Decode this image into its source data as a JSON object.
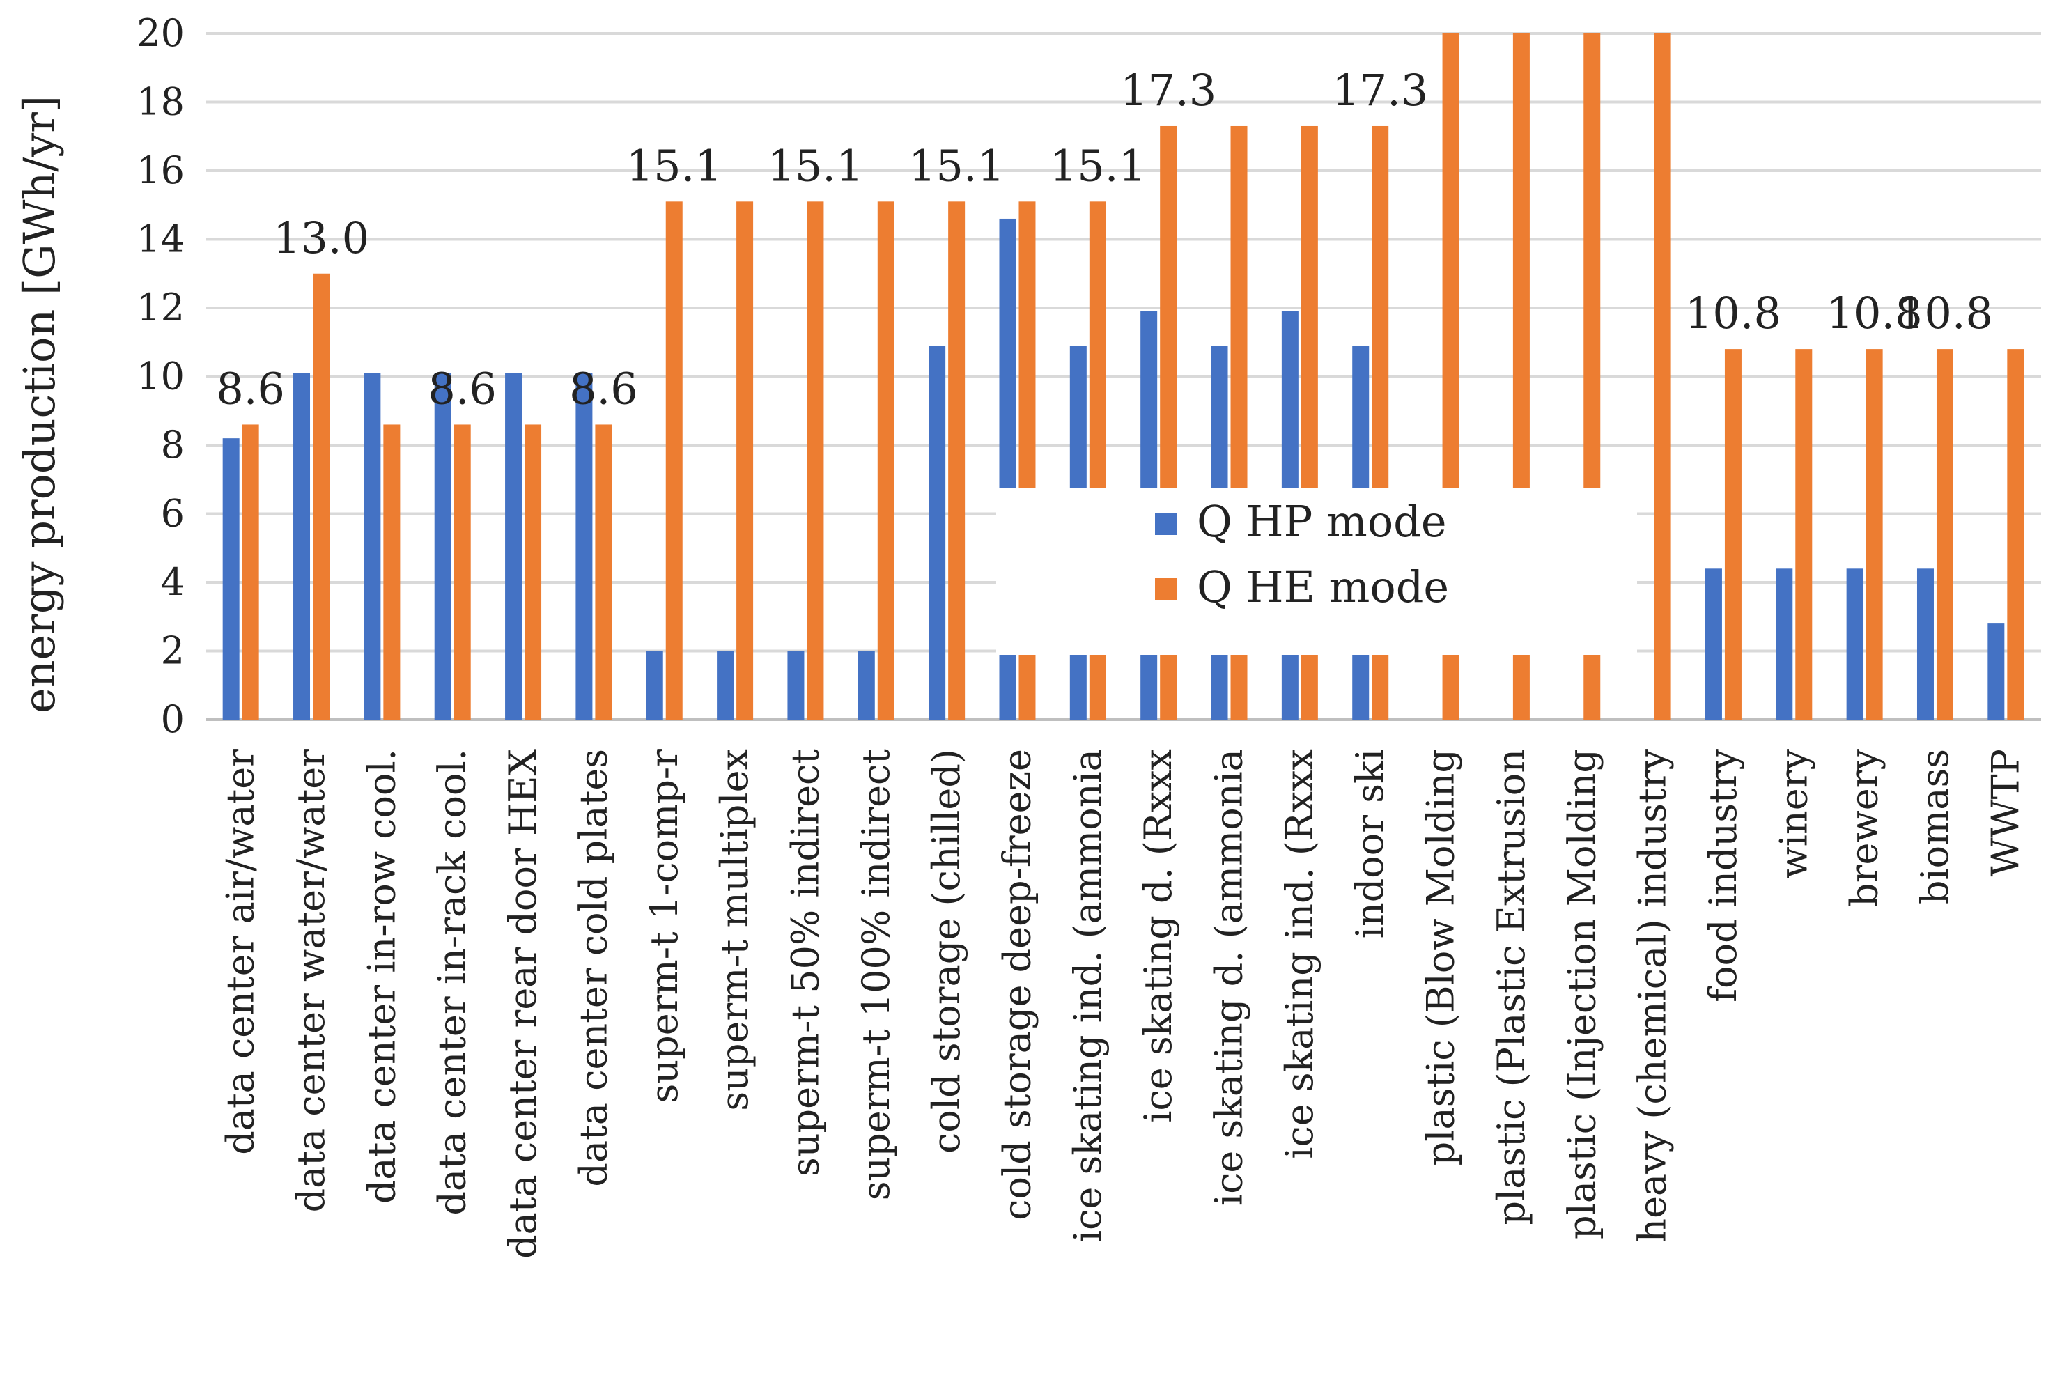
{
  "chart_data": {
    "type": "bar",
    "ylabel": "energy production [GWh/yr]",
    "xlabel": "",
    "ylim": [
      0,
      20
    ],
    "ytick_step": 2,
    "yticks": [
      "0",
      "2",
      "4",
      "6",
      "8",
      "10",
      "12",
      "14",
      "16",
      "18",
      "20"
    ],
    "grid": true,
    "legend_position": "center",
    "categories": [
      "data center air/water",
      "data center water/water",
      "data center in-row cool.",
      "data center in-rack cool.",
      "data center rear door HEX",
      "data center cold plates",
      "superm-t 1-comp-r",
      "superm-t multiplex",
      "superm-t 50% indirect",
      "superm-t 100% indirect",
      "cold storage (chilled)",
      "cold storage deep-freeze",
      "ice skating ind. (ammonia",
      "ice skating d. (Rxxx",
      "ice skating d. (ammonia",
      "ice skating ind. (Rxxx",
      "indoor ski",
      "plastic (Blow Molding",
      "plastic (Plastic Extrusion",
      "plastic (Injection Molding",
      "heavy (chemical) industry",
      "food industry",
      "winery",
      "brewery",
      "biomass",
      "WWTP"
    ],
    "series": [
      {
        "name": "Q HP mode",
        "color": "#4472C4",
        "values": [
          8.2,
          10.1,
          10.1,
          10.1,
          10.1,
          10.1,
          2.0,
          2.0,
          2.0,
          2.0,
          10.9,
          14.6,
          10.9,
          11.9,
          10.9,
          11.9,
          10.9,
          0,
          0,
          0,
          0,
          4.4,
          4.4,
          4.4,
          4.4,
          2.8
        ]
      },
      {
        "name": "Q HE mode",
        "color": "#ED7D31",
        "values": [
          8.6,
          13.0,
          8.6,
          8.6,
          8.6,
          8.6,
          15.1,
          15.1,
          15.1,
          15.1,
          15.1,
          15.1,
          15.1,
          17.3,
          17.3,
          17.3,
          17.3,
          20,
          20,
          20,
          20,
          10.8,
          10.8,
          10.8,
          10.8,
          10.8
        ]
      }
    ],
    "data_labels": [
      {
        "category_index": 0,
        "text": "8.6"
      },
      {
        "category_index": 1,
        "text": "13.0"
      },
      {
        "category_index": 3,
        "text": "8.6"
      },
      {
        "category_index": 5,
        "text": "8.6"
      },
      {
        "category_index": 6,
        "text": "15.1"
      },
      {
        "category_index": 8,
        "text": "15.1"
      },
      {
        "category_index": 10,
        "text": "15.1"
      },
      {
        "category_index": 12,
        "text": "15.1"
      },
      {
        "category_index": 13,
        "text": "17.3"
      },
      {
        "category_index": 16,
        "text": "17.3"
      },
      {
        "category_index": 21,
        "text": "10.8"
      },
      {
        "category_index": 23,
        "text": "10.8"
      },
      {
        "category_index": 24,
        "text": "10.8"
      }
    ]
  }
}
